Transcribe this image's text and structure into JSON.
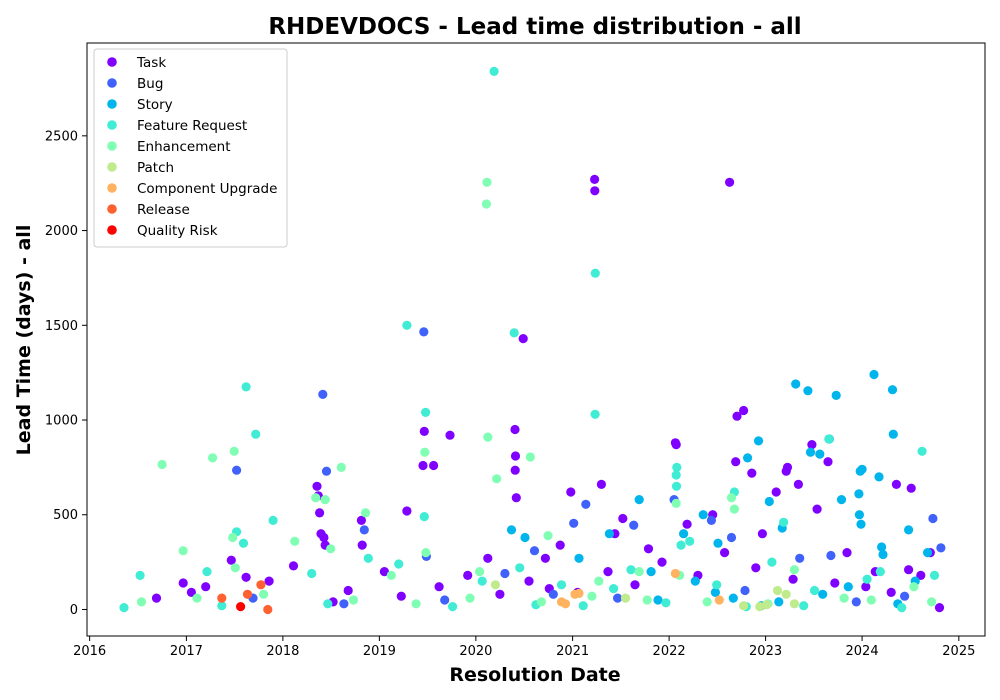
{
  "chart_data": {
    "type": "scatter",
    "title": "RHDEVDOCS - Lead time distribution - all",
    "xlabel": "Resolution Date",
    "ylabel": "Lead Time (days) - all",
    "x_type": "date",
    "xlim": [
      "2015-12-22",
      "2025-04-10"
    ],
    "ylim": [
      -140,
      2990
    ],
    "x_ticks": [
      "2016",
      "2017",
      "2018",
      "2019",
      "2020",
      "2021",
      "2022",
      "2023",
      "2024",
      "2025"
    ],
    "x_tick_dates": [
      "2016-01-01",
      "2017-01-01",
      "2018-01-01",
      "2019-01-01",
      "2020-01-01",
      "2021-01-01",
      "2022-01-01",
      "2023-01-01",
      "2024-01-01",
      "2025-01-01"
    ],
    "y_ticks": [
      0,
      500,
      1000,
      1500,
      2000,
      2500
    ],
    "grid": false,
    "legend_position": "top-left",
    "series": [
      {
        "name": "Task",
        "color": "#8000ff",
        "points": [
          [
            "2018-05-10",
            650
          ],
          [
            "2018-05-15",
            600
          ],
          [
            "2018-05-20",
            510
          ],
          [
            "2018-05-25",
            400
          ],
          [
            "2018-06-05",
            380
          ],
          [
            "2018-06-10",
            340
          ],
          [
            "2018-10-25",
            470
          ],
          [
            "2018-10-28",
            340
          ],
          [
            "2019-06-20",
            940
          ],
          [
            "2019-06-15",
            760
          ],
          [
            "2019-07-25",
            760
          ],
          [
            "2019-09-25",
            920
          ],
          [
            "2019-04-15",
            520
          ],
          [
            "2020-05-28",
            950
          ],
          [
            "2020-05-30",
            810
          ],
          [
            "2020-05-29",
            735
          ],
          [
            "2020-06-02",
            590
          ],
          [
            "2020-06-28",
            1430
          ],
          [
            "2021-03-25",
            2270
          ],
          [
            "2021-03-26",
            2210
          ],
          [
            "2021-07-10",
            480
          ],
          [
            "2020-12-25",
            620
          ],
          [
            "2021-04-20",
            660
          ],
          [
            "2022-08-18",
            2255
          ],
          [
            "2022-01-25",
            880
          ],
          [
            "2022-01-28",
            870
          ],
          [
            "2022-09-15",
            1020
          ],
          [
            "2022-10-10",
            1050
          ],
          [
            "2022-09-10",
            780
          ],
          [
            "2022-11-10",
            720
          ],
          [
            "2023-03-25",
            750
          ],
          [
            "2023-03-20",
            730
          ],
          [
            "2023-06-25",
            870
          ],
          [
            "2023-08-25",
            780
          ],
          [
            "2023-05-05",
            660
          ],
          [
            "2024-05-10",
            660
          ],
          [
            "2024-07-05",
            640
          ],
          [
            "2023-02-10",
            620
          ],
          [
            "2023-07-15",
            530
          ],
          [
            "2024-09-15",
            300
          ],
          [
            "2024-10-20",
            10
          ],
          [
            "2016-12-20",
            140
          ],
          [
            "2017-03-15",
            120
          ],
          [
            "2017-06-20",
            260
          ],
          [
            "2017-08-15",
            170
          ],
          [
            "2018-02-10",
            230
          ],
          [
            "2019-01-20",
            200
          ],
          [
            "2019-12-01",
            180
          ],
          [
            "2020-02-15",
            270
          ],
          [
            "2020-09-20",
            270
          ],
          [
            "2020-11-15",
            340
          ],
          [
            "2021-06-10",
            400
          ],
          [
            "2021-10-15",
            320
          ],
          [
            "2022-03-10",
            450
          ],
          [
            "2022-06-15",
            500
          ],
          [
            "2022-12-20",
            400
          ],
          [
            "2023-11-05",
            300
          ],
          [
            "2024-02-20",
            200
          ],
          [
            "2024-08-10",
            180
          ],
          [
            "2016-09-10",
            60
          ],
          [
            "2017-01-20",
            90
          ],
          [
            "2017-11-10",
            150
          ],
          [
            "2018-07-10",
            40
          ],
          [
            "2018-09-05",
            100
          ],
          [
            "2019-03-25",
            70
          ],
          [
            "2019-08-15",
            120
          ],
          [
            "2020-04-01",
            80
          ],
          [
            "2020-07-20",
            150
          ],
          [
            "2020-10-05",
            110
          ],
          [
            "2021-01-20",
            90
          ],
          [
            "2021-05-15",
            200
          ],
          [
            "2021-08-25",
            130
          ],
          [
            "2021-12-05",
            250
          ],
          [
            "2022-04-20",
            180
          ],
          [
            "2022-07-30",
            300
          ],
          [
            "2022-11-25",
            220
          ],
          [
            "2023-04-15",
            160
          ],
          [
            "2023-09-20",
            140
          ],
          [
            "2024-01-15",
            120
          ],
          [
            "2024-04-20",
            90
          ],
          [
            "2024-06-25",
            210
          ]
        ]
      },
      {
        "name": "Bug",
        "color": "#4062fa",
        "points": [
          [
            "2018-06-01",
            1135
          ],
          [
            "2019-06-18",
            1465
          ],
          [
            "2017-07-10",
            735
          ],
          [
            "2018-06-15",
            730
          ],
          [
            "2021-01-05",
            455
          ],
          [
            "2021-02-20",
            555
          ],
          [
            "2018-11-05",
            420
          ],
          [
            "2020-08-10",
            310
          ],
          [
            "2021-08-20",
            445
          ],
          [
            "2022-06-10",
            470
          ],
          [
            "2022-08-25",
            380
          ],
          [
            "2023-09-05",
            285
          ],
          [
            "2024-09-25",
            480
          ],
          [
            "2024-10-25",
            325
          ],
          [
            "2019-06-28",
            280
          ],
          [
            "2020-04-20",
            190
          ],
          [
            "2022-01-20",
            580
          ],
          [
            "2023-05-10",
            270
          ],
          [
            "2017-09-10",
            60
          ],
          [
            "2018-08-20",
            30
          ],
          [
            "2019-09-05",
            50
          ],
          [
            "2020-10-20",
            80
          ],
          [
            "2021-06-20",
            60
          ],
          [
            "2022-10-15",
            100
          ],
          [
            "2023-12-10",
            40
          ],
          [
            "2024-06-10",
            70
          ]
        ]
      },
      {
        "name": "Story",
        "color": "#00b5eb",
        "points": [
          [
            "2023-04-25",
            1190
          ],
          [
            "2023-06-10",
            1155
          ],
          [
            "2023-09-25",
            1130
          ],
          [
            "2024-02-15",
            1240
          ],
          [
            "2024-04-25",
            1160
          ],
          [
            "2022-12-05",
            890
          ],
          [
            "2023-08-30",
            900
          ],
          [
            "2024-04-28",
            925
          ],
          [
            "2023-07-25",
            820
          ],
          [
            "2023-06-20",
            830
          ],
          [
            "2024-06-25",
            420
          ],
          [
            "2022-10-25",
            800
          ],
          [
            "2023-03-05",
            430
          ],
          [
            "2021-09-10",
            580
          ],
          [
            "2022-02-25",
            400
          ],
          [
            "2023-12-25",
            730
          ],
          [
            "2024-01-01",
            740
          ],
          [
            "2024-03-05",
            700
          ],
          [
            "2023-12-20",
            610
          ],
          [
            "2023-10-15",
            580
          ],
          [
            "2023-12-22",
            500
          ],
          [
            "2023-12-28",
            450
          ],
          [
            "2024-03-20",
            290
          ],
          [
            "2024-03-15",
            330
          ],
          [
            "2020-07-05",
            380
          ],
          [
            "2021-01-25",
            270
          ],
          [
            "2022-05-10",
            500
          ],
          [
            "2023-01-15",
            570
          ],
          [
            "2022-07-05",
            350
          ],
          [
            "2021-10-25",
            200
          ],
          [
            "2020-05-15",
            420
          ],
          [
            "2021-05-20",
            400
          ],
          [
            "2022-04-10",
            150
          ],
          [
            "2023-11-10",
            120
          ],
          [
            "2024-07-20",
            150
          ],
          [
            "2024-09-05",
            300
          ],
          [
            "2022-06-25",
            90
          ],
          [
            "2022-09-01",
            60
          ],
          [
            "2023-02-20",
            40
          ],
          [
            "2023-08-05",
            80
          ],
          [
            "2024-05-15",
            30
          ],
          [
            "2021-11-20",
            50
          ],
          [
            "2022-12-15",
            20
          ]
        ]
      },
      {
        "name": "Feature Request",
        "color": "#40ecd4",
        "points": [
          [
            "2020-03-10",
            2840
          ],
          [
            "2021-03-28",
            1775
          ],
          [
            "2019-04-15",
            1500
          ],
          [
            "2020-05-25",
            1460
          ],
          [
            "2017-08-15",
            1175
          ],
          [
            "2019-06-25",
            1040
          ],
          [
            "2021-03-27",
            1030
          ],
          [
            "2017-09-20",
            925
          ],
          [
            "2022-01-30",
            750
          ],
          [
            "2022-01-28",
            710
          ],
          [
            "2022-01-29",
            650
          ],
          [
            "2023-08-28",
            900
          ],
          [
            "2024-08-15",
            835
          ],
          [
            "2017-07-10",
            410
          ],
          [
            "2017-08-05",
            350
          ],
          [
            "2018-11-20",
            270
          ],
          [
            "2019-06-20",
            490
          ],
          [
            "2020-06-15",
            220
          ],
          [
            "2021-08-10",
            210
          ],
          [
            "2022-03-20",
            360
          ],
          [
            "2022-09-05",
            620
          ],
          [
            "2023-03-10",
            460
          ],
          [
            "2024-03-10",
            200
          ],
          [
            "2017-11-25",
            470
          ],
          [
            "2016-07-10",
            180
          ],
          [
            "2017-03-20",
            200
          ],
          [
            "2018-04-20",
            190
          ],
          [
            "2019-03-15",
            240
          ],
          [
            "2020-01-25",
            150
          ],
          [
            "2020-11-20",
            130
          ],
          [
            "2021-06-05",
            110
          ],
          [
            "2022-02-15",
            340
          ],
          [
            "2022-06-30",
            130
          ],
          [
            "2023-01-25",
            250
          ],
          [
            "2023-07-05",
            100
          ],
          [
            "2024-01-20",
            160
          ],
          [
            "2024-10-01",
            180
          ],
          [
            "2016-05-10",
            10
          ],
          [
            "2017-05-15",
            20
          ],
          [
            "2018-06-20",
            30
          ],
          [
            "2019-10-05",
            15
          ],
          [
            "2020-08-15",
            25
          ],
          [
            "2021-02-10",
            20
          ],
          [
            "2021-12-20",
            35
          ],
          [
            "2022-10-20",
            15
          ],
          [
            "2023-05-25",
            20
          ],
          [
            "2024-05-30",
            10
          ]
        ]
      },
      {
        "name": "Enhancement",
        "color": "#80ffb4",
        "points": [
          [
            "2020-02-12",
            2255
          ],
          [
            "2020-02-10",
            2140
          ],
          [
            "2020-02-15",
            910
          ],
          [
            "2020-03-20",
            690
          ],
          [
            "2016-10-01",
            765
          ],
          [
            "2017-04-10",
            800
          ],
          [
            "2017-07-01",
            835
          ],
          [
            "2018-08-10",
            750
          ],
          [
            "2019-06-22",
            830
          ],
          [
            "2020-07-25",
            805
          ],
          [
            "2016-12-20",
            310
          ],
          [
            "2018-05-05",
            590
          ],
          [
            "2018-06-10",
            580
          ],
          [
            "2018-11-10",
            510
          ],
          [
            "2019-06-26",
            300
          ],
          [
            "2020-09-30",
            390
          ],
          [
            "2022-08-25",
            590
          ],
          [
            "2022-09-05",
            530
          ],
          [
            "2018-02-15",
            360
          ],
          [
            "2017-06-25",
            380
          ],
          [
            "2017-07-05",
            220
          ],
          [
            "2018-07-01",
            320
          ],
          [
            "2019-02-15",
            180
          ],
          [
            "2020-01-15",
            200
          ],
          [
            "2021-04-10",
            150
          ],
          [
            "2021-09-10",
            200
          ],
          [
            "2022-01-28",
            560
          ],
          [
            "2022-02-10",
            180
          ],
          [
            "2023-04-20",
            210
          ],
          [
            "2024-07-15",
            120
          ],
          [
            "2016-07-15",
            40
          ],
          [
            "2017-02-10",
            60
          ],
          [
            "2017-10-20",
            80
          ],
          [
            "2018-09-25",
            50
          ],
          [
            "2019-05-20",
            30
          ],
          [
            "2019-12-10",
            60
          ],
          [
            "2020-09-05",
            40
          ],
          [
            "2021-03-15",
            70
          ],
          [
            "2021-10-10",
            50
          ],
          [
            "2022-05-25",
            40
          ],
          [
            "2023-01-10",
            30
          ],
          [
            "2023-10-25",
            60
          ],
          [
            "2024-02-05",
            50
          ],
          [
            "2024-09-20",
            40
          ]
        ]
      },
      {
        "name": "Patch",
        "color": "#c0eb8d",
        "points": [
          [
            "2022-12-10",
            15
          ],
          [
            "2023-01-05",
            25
          ],
          [
            "2023-03-20",
            80
          ],
          [
            "2023-04-20",
            30
          ],
          [
            "2023-02-15",
            100
          ],
          [
            "2020-03-15",
            130
          ],
          [
            "2021-07-20",
            60
          ],
          [
            "2022-10-10",
            20
          ]
        ]
      },
      {
        "name": "Component Upgrade",
        "color": "#ffb360",
        "points": [
          [
            "2020-11-20",
            40
          ],
          [
            "2020-12-05",
            30
          ],
          [
            "2021-01-10",
            80
          ],
          [
            "2021-01-25",
            85
          ],
          [
            "2022-01-25",
            190
          ],
          [
            "2022-07-10",
            50
          ]
        ]
      },
      {
        "name": "Release",
        "color": "#ff6130",
        "points": [
          [
            "2017-05-15",
            60
          ],
          [
            "2017-08-20",
            80
          ],
          [
            "2017-10-10",
            130
          ],
          [
            "2017-11-05",
            0
          ]
        ]
      },
      {
        "name": "Quality Risk",
        "color": "#ff0000",
        "points": [
          [
            "2017-07-25",
            15
          ]
        ]
      }
    ]
  }
}
